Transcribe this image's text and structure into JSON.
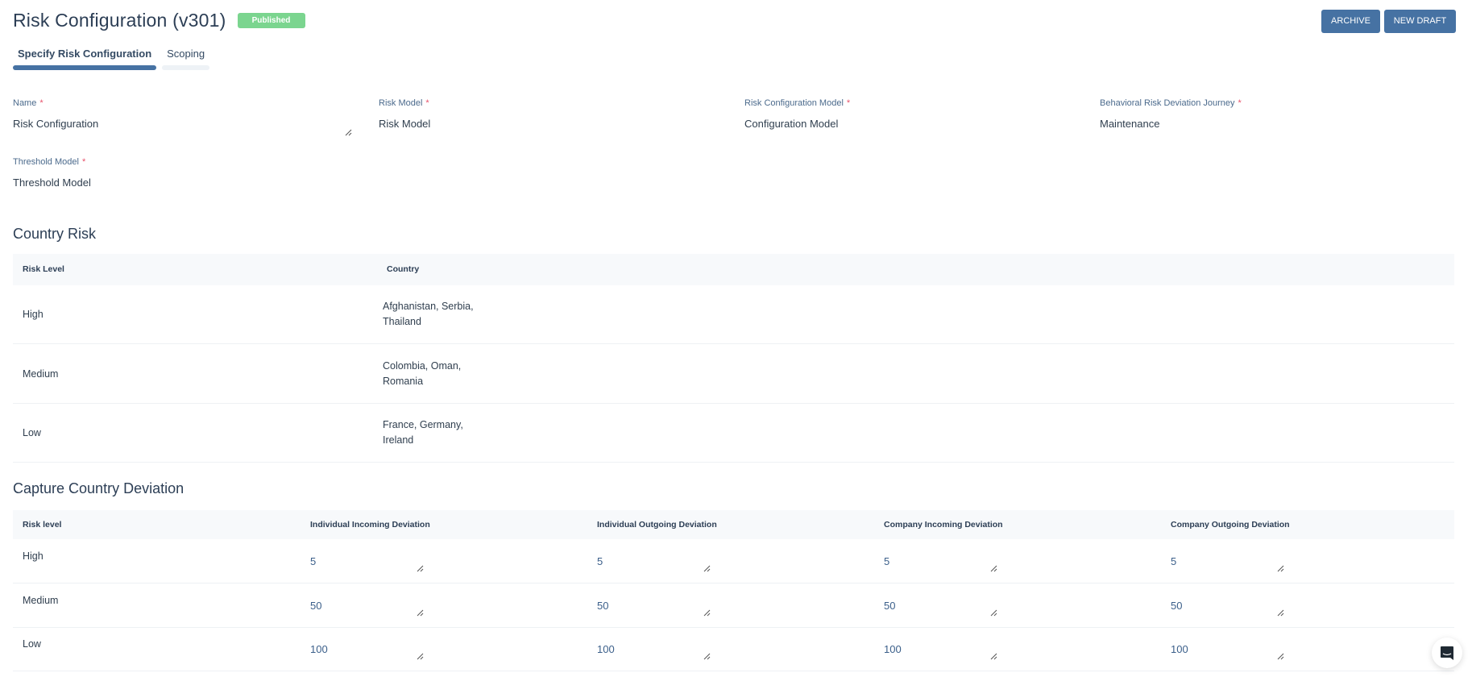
{
  "header": {
    "title": "Risk Configuration (v301)",
    "status": "Published",
    "status_color": "#7bd58f",
    "archive_label": "ARCHIVE",
    "new_draft_label": "NEW DRAFT",
    "accent": "#4672a3"
  },
  "tabs": [
    {
      "label": "Specify Risk Configuration",
      "active": true
    },
    {
      "label": "Scoping",
      "active": false
    }
  ],
  "fields": [
    {
      "label": "Name",
      "required": "*",
      "value": "Risk Configuration"
    },
    {
      "label": "Risk Model",
      "required": "*",
      "value": "Risk Model"
    },
    {
      "label": "Risk Configuration Model",
      "required": "*",
      "value": "Configuration Model"
    },
    {
      "label": "Behavioral Risk Deviation Journey",
      "required": "*",
      "value": "Maintenance"
    },
    {
      "label": "Threshold Model",
      "required": "*",
      "value": "Threshold Model"
    }
  ],
  "country_risk": {
    "title": "Country Risk",
    "columns": [
      "Risk Level",
      "Country"
    ],
    "rows": [
      {
        "level": "High",
        "line1": "Afghanistan, Serbia,",
        "line2": "Thailand"
      },
      {
        "level": "Medium",
        "line1": "Colombia, Oman,",
        "line2": "Romania"
      },
      {
        "level": "Low",
        "line1": "France, Germany,",
        "line2": "Ireland"
      }
    ]
  },
  "deviation": {
    "title": "Capture Country Deviation",
    "columns": [
      "Risk level",
      "Individual Incoming Deviation",
      "Individual Outgoing Deviation",
      "Company Incoming Deviation",
      "Company Outgoing Deviation"
    ],
    "rows": [
      {
        "level": "High",
        "values": [
          "5",
          "5",
          "5",
          "5"
        ]
      },
      {
        "level": "Medium",
        "values": [
          "50",
          "50",
          "50",
          "50"
        ]
      },
      {
        "level": "Low",
        "values": [
          "100",
          "100",
          "100",
          "100"
        ]
      }
    ]
  },
  "chat": {
    "icon": "chat-icon"
  }
}
